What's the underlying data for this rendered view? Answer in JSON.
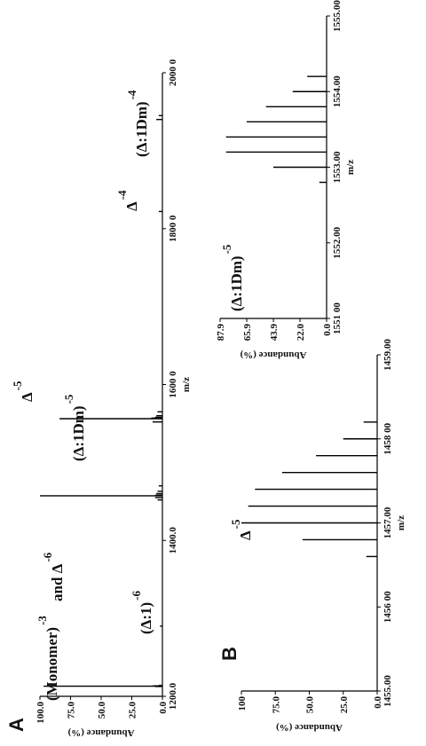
{
  "chart_data": [
    {
      "type": "stem",
      "panel": "A",
      "xlabel": "m/z",
      "ylabel": "Abundance (%)",
      "color": "#000000",
      "xlim": [
        1200,
        2000
      ],
      "xticks": [
        {
          "value": 1200,
          "label": "1200.0"
        },
        {
          "value": 1400,
          "label": "1400.0"
        },
        {
          "value": 1600,
          "label": "1600 0"
        },
        {
          "value": 1800,
          "label": "1800 0"
        },
        {
          "value": 2000,
          "label": "2000 0"
        }
      ],
      "ylim": [
        0,
        100
      ],
      "yticks": [
        {
          "value": 0,
          "label": "0.0"
        },
        {
          "value": 25,
          "label": "25.0"
        },
        {
          "value": 50,
          "label": "50.0"
        },
        {
          "value": 75,
          "label": "75.0"
        },
        {
          "value": 100,
          "label": "100.0"
        }
      ],
      "x": [
        1212.6,
        1213.0,
        1213.4,
        1214,
        1290,
        1452,
        1455,
        1457.2,
        1458,
        1460,
        1463,
        1470,
        1552,
        1556.2,
        1557,
        1558,
        1560,
        1565,
        1822,
        1940,
        1945
      ],
      "values": [
        6,
        97,
        8,
        3,
        2,
        4,
        6,
        100,
        6,
        5,
        4,
        3,
        8,
        84,
        9,
        6,
        5,
        4,
        3,
        5,
        3
      ],
      "annotations": [
        {
          "text": "(Monomer)",
          "charge": "-3"
        },
        {
          "text": "and Δ",
          "charge": "-6"
        },
        {
          "text": "(Δ:1)",
          "charge": "-6"
        },
        {
          "text": "Δ",
          "charge": "-5"
        },
        {
          "text": "(Δ:1Dm)",
          "charge": "-5"
        },
        {
          "text": "Δ",
          "charge": "-4"
        },
        {
          "text": "(Δ:1Dm)",
          "charge": "-4"
        }
      ]
    },
    {
      "type": "stem",
      "panel": "B",
      "xlabel": "m/z",
      "ylabel": "Abundance (%)",
      "color": "#000000",
      "xlim": [
        1455,
        1459
      ],
      "xticks": [
        {
          "value": 1455,
          "label": "1455.00"
        },
        {
          "value": 1456,
          "label": "1456 00"
        },
        {
          "value": 1457,
          "label": "1457.00"
        },
        {
          "value": 1458,
          "label": "1458 00"
        },
        {
          "value": 1459,
          "label": "1459.00"
        }
      ],
      "ylim": [
        0,
        100
      ],
      "yticks": [
        {
          "value": 0,
          "label": "0.0"
        },
        {
          "value": 25,
          "label": "25.0"
        },
        {
          "value": 50,
          "label": "50.0"
        },
        {
          "value": 75,
          "label": "75.0"
        },
        100
      ],
      "x": [
        1456.6,
        1456.8,
        1457.0,
        1457.2,
        1457.4,
        1457.6,
        1457.8,
        1458.0,
        1458.2
      ],
      "values": [
        8,
        55,
        100,
        95,
        90,
        70,
        45,
        25,
        10
      ],
      "annotations": [
        {
          "text": "Δ",
          "charge": "-5"
        }
      ]
    },
    {
      "type": "stem",
      "xlabel": "m/z",
      "ylabel": "Abundance (%)",
      "color": "#000000",
      "xlim": [
        1551,
        1555
      ],
      "xticks": [
        {
          "value": 1551,
          "label": "1551 00"
        },
        {
          "value": 1552,
          "label": "1552.00"
        },
        {
          "value": 1553,
          "label": "1553.00"
        },
        {
          "value": 1554,
          "label": "1554.00"
        },
        {
          "value": 1555,
          "label": "1555.00"
        }
      ],
      "ylim": [
        0,
        87.9
      ],
      "yticks": [
        {
          "value": 0,
          "label": "0.0"
        },
        {
          "value": 22,
          "label": "22.0"
        },
        43.9,
        65.9,
        87.9
      ],
      "x": [
        1552.8,
        1553.0,
        1553.2,
        1553.4,
        1553.6,
        1553.8,
        1554.0,
        1554.2
      ],
      "values": [
        6,
        44,
        83,
        83,
        66,
        50,
        28,
        16
      ],
      "annotations": [
        {
          "text": "(Δ:1Dm)",
          "charge": "-5"
        }
      ]
    }
  ]
}
